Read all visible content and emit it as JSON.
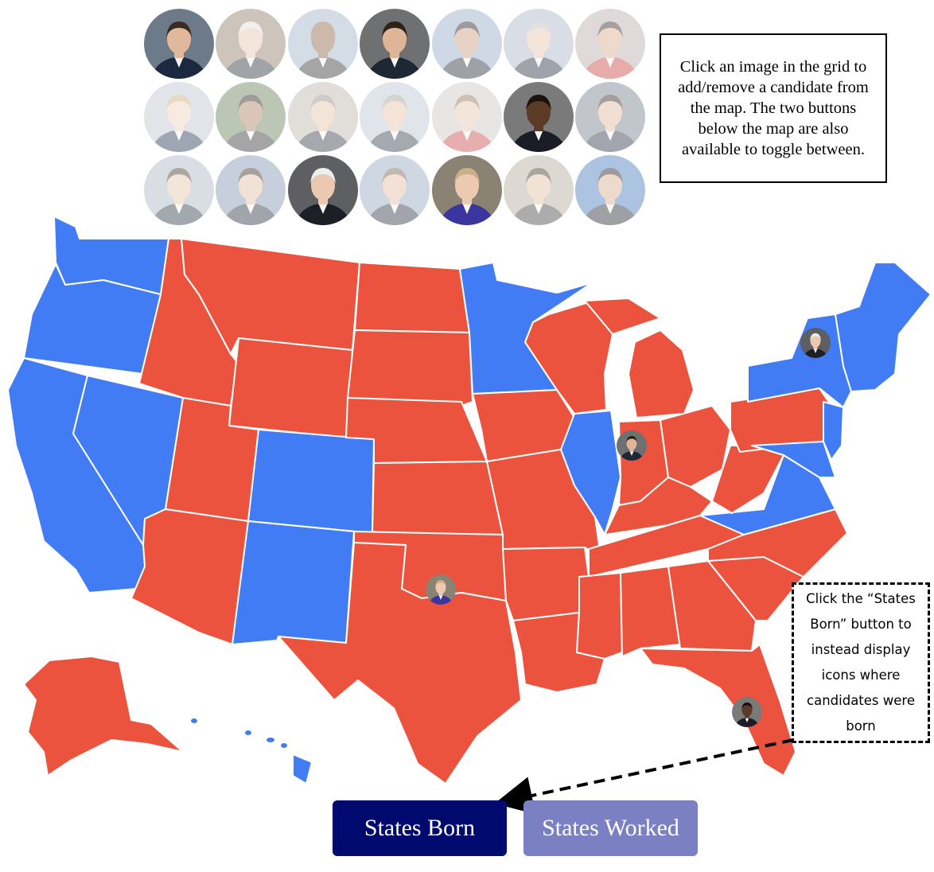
{
  "instructions": "Click an image in the grid to add/remove a candidate from the map. The two buttons below the map are also available to toggle between.",
  "callout": "Click the “States Born” button to instead display icons where candidates were born",
  "buttons": {
    "born": "States Born",
    "worked": "States Worked"
  },
  "colors": {
    "red": "#ec533e",
    "blue": "#417cf4",
    "born_button": "#000a6e",
    "worked_button": "#7a80c2"
  },
  "candidates": [
    {
      "selected": true,
      "bg": "#6c7a8a",
      "skin": "#e2b89c",
      "hair": "#3b2a1f",
      "suit": "#1c2740"
    },
    {
      "selected": false,
      "bg": "#8a7760",
      "skin": "#e6c2a8",
      "hair": "#dcdcdc",
      "suit": "#1f2533"
    },
    {
      "selected": false,
      "bg": "#9bb0c6",
      "skin": "#8a5a3c",
      "hair": "#8a5a3c",
      "suit": "#2a2a2a"
    },
    {
      "selected": true,
      "bg": "#6e7071",
      "skin": "#e0b497",
      "hair": "#2e2118",
      "suit": "#1e2734"
    },
    {
      "selected": false,
      "bg": "#8ea4c3",
      "skin": "#c99677",
      "hair": "#1c1410",
      "suit": "#1b2330"
    },
    {
      "selected": false,
      "bg": "#a6b2c6",
      "skin": "#e8c0a6",
      "hair": "#b7b7b7",
      "suit": "#1e2736"
    },
    {
      "selected": false,
      "bg": "#b5a6a8",
      "skin": "#d8a98a",
      "hair": "#2d1d15",
      "suit": "#c83a34"
    },
    {
      "selected": false,
      "bg": "#b9c1c9",
      "skin": "#edd0b8",
      "hair": "#cfa56e",
      "suit": "#1b2a4c"
    },
    {
      "selected": false,
      "bg": "#5f7a4f",
      "skin": "#a9795b",
      "hair": "#1d1410",
      "suit": "#2a2a2a"
    },
    {
      "selected": false,
      "bg": "#b8b2a8",
      "skin": "#e5bfa4",
      "hair": "#8b8580",
      "suit": "#2c3440"
    },
    {
      "selected": false,
      "bg": "#b5c2cf",
      "skin": "#e6bfa3",
      "hair": "#a0968d",
      "suit": "#2a3646"
    },
    {
      "selected": false,
      "bg": "#c9c6c2",
      "skin": "#e6c3a9",
      "hair": "#8d6a4a",
      "suit": "#c44040"
    },
    {
      "selected": true,
      "bg": "#7a7a7a",
      "skin": "#5b3a26",
      "hair": "#1b120d",
      "suit": "#1a1d28"
    },
    {
      "selected": false,
      "bg": "#6d7a8a",
      "skin": "#e0b498",
      "hair": "#2a1d15",
      "suit": "#232b39"
    },
    {
      "selected": false,
      "bg": "#a7b2c2",
      "skin": "#e6c2a6",
      "hair": "#3c2b20",
      "suit": "#253041"
    },
    {
      "selected": false,
      "bg": "#7e8fae",
      "skin": "#e2b99c",
      "hair": "#2e2119",
      "suit": "#222b3a"
    },
    {
      "selected": true,
      "bg": "#5d5f63",
      "skin": "#ecc8b0",
      "hair": "#eeeeee",
      "suit": "#1d1f26"
    },
    {
      "selected": false,
      "bg": "#8ea2bd",
      "skin": "#e2b89b",
      "hair": "#6d5a48",
      "suit": "#232c3b"
    },
    {
      "selected": true,
      "bg": "#8a8374",
      "skin": "#ecc9b1",
      "hair": "#c9b089",
      "suit": "#3b35a0"
    },
    {
      "selected": false,
      "bg": "#b0a596",
      "skin": "#e2bc9f",
      "hair": "#3a2a20",
      "suit": "#3b3b3b"
    },
    {
      "selected": false,
      "bg": "#3b74b8",
      "skin": "#d9a98a",
      "hair": "#1a1410",
      "suit": "#1b1f27"
    }
  ]
}
